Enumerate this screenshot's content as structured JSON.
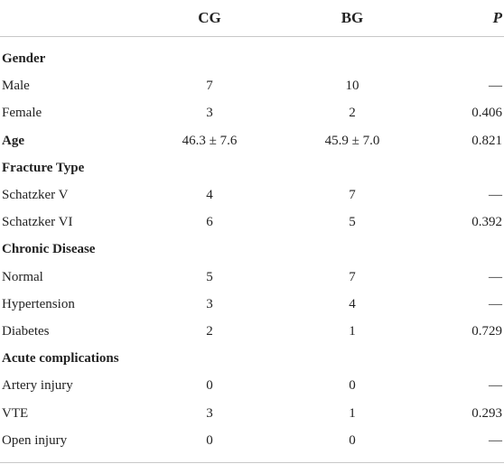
{
  "table": {
    "header": [
      "CG",
      "BG",
      "P"
    ],
    "rows": [
      {
        "label": "Gender",
        "bold": true
      },
      {
        "label": "Male",
        "values": [
          "7",
          "10",
          "—"
        ]
      },
      {
        "label": "Female",
        "values": [
          "3",
          "2",
          "0.406"
        ]
      },
      {
        "label": "Age",
        "bold": true,
        "values": [
          "46.3 ± 7.6",
          "45.9 ± 7.0",
          "0.821"
        ]
      },
      {
        "label": "Fracture Type",
        "bold": true
      },
      {
        "label": "Schatzker V",
        "values": [
          "4",
          "7",
          "—"
        ]
      },
      {
        "label": "Schatzker VI",
        "values": [
          "6",
          "5",
          "0.392"
        ]
      },
      {
        "label": "Chronic Disease",
        "bold": true
      },
      {
        "label": "Normal",
        "values": [
          "5",
          "7",
          "—"
        ]
      },
      {
        "label": "Hypertension",
        "values": [
          "3",
          "4",
          "—"
        ]
      },
      {
        "label": "Diabetes",
        "values": [
          "2",
          "1",
          "0.729"
        ]
      },
      {
        "label": "Acute complications",
        "bold": true
      },
      {
        "label": "Artery injury",
        "values": [
          "0",
          "0",
          "—"
        ]
      },
      {
        "label": "VTE",
        "values": [
          "3",
          "1",
          "0.293"
        ]
      },
      {
        "label": "Open injury",
        "values": [
          "0",
          "0",
          "—"
        ]
      }
    ]
  }
}
